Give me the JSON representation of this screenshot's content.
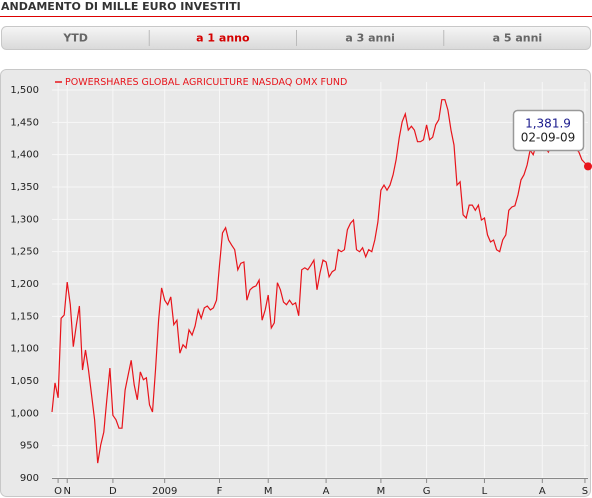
{
  "header": {
    "title": "ANDAMENTO DI MILLE EURO INVESTITI"
  },
  "tabs": [
    {
      "label": "YTD",
      "active": false
    },
    {
      "label": "a 1 anno",
      "active": true
    },
    {
      "label": "a 3 anni",
      "active": false
    },
    {
      "label": "a 5 anni",
      "active": false
    }
  ],
  "chart_data": {
    "type": "line",
    "grid": true,
    "series": [
      {
        "name": "POWERSHARES GLOBAL AGRICULTURE NASDAQ OMX FUND",
        "color": "#e8141b",
        "values": [
          1002,
          1047,
          1024,
          1147,
          1152,
          1203,
          1168,
          1103,
          1137,
          1166,
          1067,
          1098,
          1067,
          1028,
          990,
          923,
          951,
          971,
          1021,
          1070,
          997,
          990,
          977,
          977,
          1036,
          1059,
          1082,
          1044,
          1021,
          1064,
          1052,
          1055,
          1013,
          1002,
          1067,
          1144,
          1194,
          1175,
          1168,
          1180,
          1137,
          1144,
          1093,
          1106,
          1101,
          1129,
          1121,
          1135,
          1160,
          1147,
          1163,
          1166,
          1160,
          1163,
          1175,
          1229,
          1279,
          1287,
          1268,
          1260,
          1253,
          1222,
          1232,
          1234,
          1175,
          1191,
          1195,
          1197,
          1206,
          1144,
          1160,
          1183,
          1132,
          1140,
          1202,
          1191,
          1172,
          1168,
          1175,
          1168,
          1171,
          1151,
          1222,
          1225,
          1222,
          1229,
          1237,
          1191,
          1217,
          1237,
          1234,
          1211,
          1219,
          1222,
          1253,
          1250,
          1253,
          1284,
          1294,
          1299,
          1253,
          1250,
          1256,
          1242,
          1253,
          1250,
          1268,
          1296,
          1345,
          1353,
          1345,
          1353,
          1369,
          1392,
          1426,
          1451,
          1463,
          1438,
          1444,
          1438,
          1420,
          1420,
          1423,
          1446,
          1423,
          1427,
          1446,
          1454,
          1485,
          1485,
          1469,
          1438,
          1415,
          1353,
          1358,
          1307,
          1302,
          1322,
          1322,
          1314,
          1322,
          1299,
          1302,
          1276,
          1265,
          1268,
          1253,
          1250,
          1268,
          1276,
          1314,
          1319,
          1321,
          1338,
          1361,
          1369,
          1384,
          1407,
          1400,
          1415,
          1418,
          1410,
          1410,
          1404,
          1415,
          1410,
          1407,
          1412,
          1412,
          1407,
          1410,
          1407,
          1410,
          1404,
          1392,
          1387,
          1381.9
        ]
      }
    ],
    "xlim": [
      0,
      176
    ],
    "xticks": [
      {
        "value": 2,
        "label": "O"
      },
      {
        "value": 5,
        "label": "N"
      },
      {
        "value": 20,
        "label": "D"
      },
      {
        "value": 37,
        "label": "2009"
      },
      {
        "value": 55,
        "label": "F"
      },
      {
        "value": 71,
        "label": "M"
      },
      {
        "value": 90,
        "label": "A"
      },
      {
        "value": 108,
        "label": "M"
      },
      {
        "value": 123,
        "label": "G"
      },
      {
        "value": 142,
        "label": "L"
      },
      {
        "value": 161,
        "label": "A"
      },
      {
        "value": 175,
        "label": "S"
      }
    ],
    "ylim": [
      900,
      1500
    ],
    "yticks": [
      900,
      950,
      {
        "value": 1000,
        "label": "1,000"
      },
      {
        "value": 1050,
        "label": "1,050"
      },
      {
        "value": 1100,
        "label": "1,100"
      },
      {
        "value": 1150,
        "label": "1,150"
      },
      {
        "value": 1200,
        "label": "1,200"
      },
      {
        "value": 1250,
        "label": "1,250"
      },
      {
        "value": 1300,
        "label": "1,300"
      },
      {
        "value": 1350,
        "label": "1,350"
      },
      {
        "value": 1400,
        "label": "1,400"
      },
      {
        "value": 1450,
        "label": "1,450"
      },
      {
        "value": 1500,
        "label": "1,500"
      }
    ],
    "tooltip": {
      "value": "1,381.9",
      "date": "02-09-09"
    }
  }
}
